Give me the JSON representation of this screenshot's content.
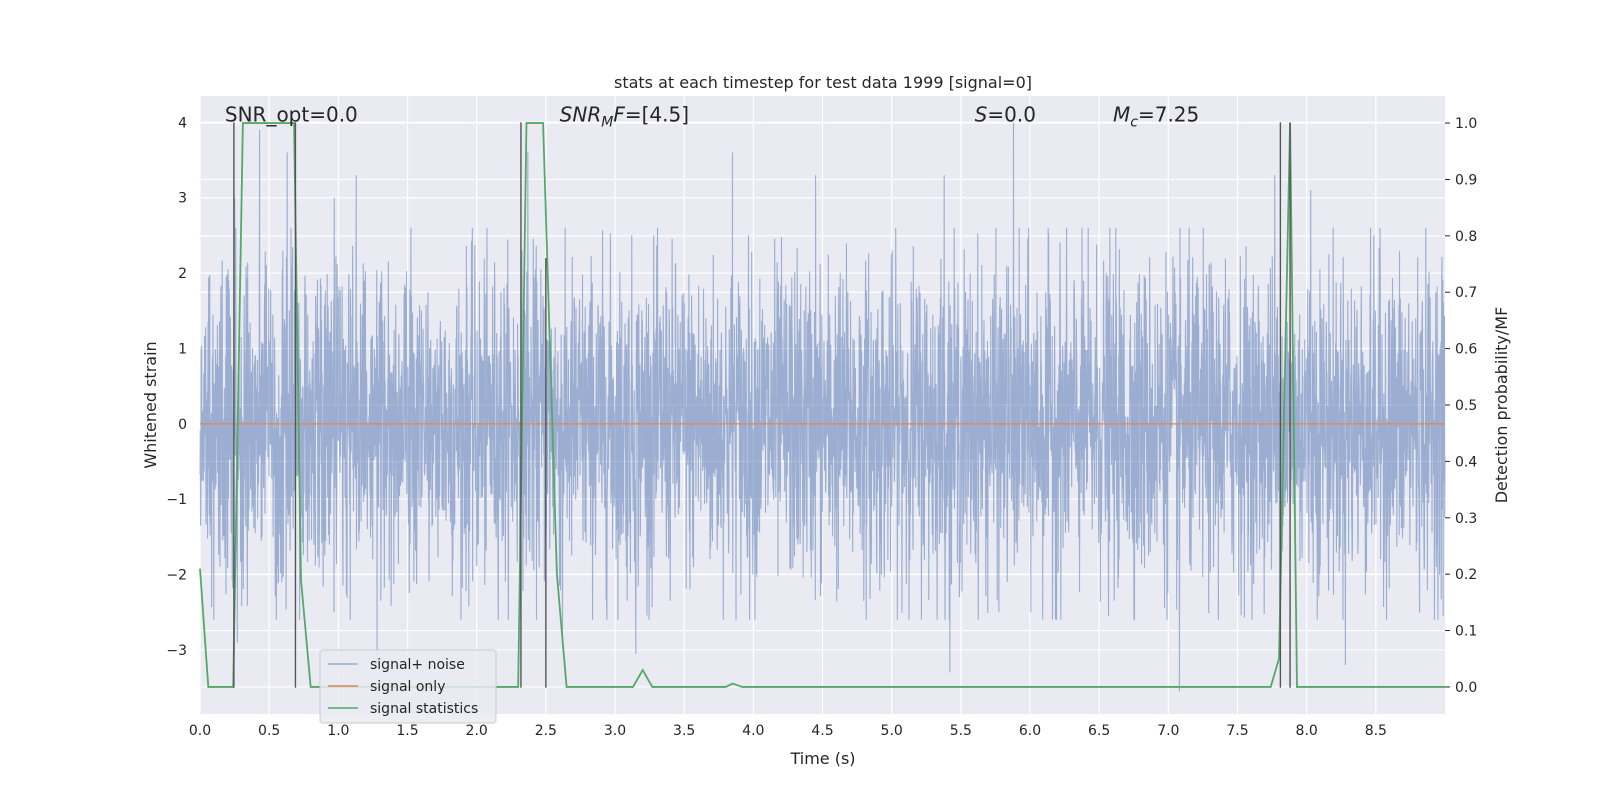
{
  "chart_data": {
    "type": "line",
    "title": "stats at each timestep for test data 1999 [signal=0]",
    "xlabel": "Time (s)",
    "ylabel": "Whitened strain",
    "ylabel_right": "Detection probability/MF",
    "xlim": [
      0.0,
      9.0
    ],
    "ylim": [
      -3.85,
      4.35
    ],
    "ylim_right": [
      -0.048,
      1.048
    ],
    "x_ticks": [
      "0.0",
      "0.5",
      "1.0",
      "1.5",
      "2.0",
      "2.5",
      "3.0",
      "3.5",
      "4.0",
      "4.5",
      "5.0",
      "5.5",
      "6.0",
      "6.5",
      "7.0",
      "7.5",
      "8.0",
      "8.5"
    ],
    "y_ticks": [
      "4",
      "3",
      "2",
      "1",
      "0",
      "−1",
      "−2",
      "−3"
    ],
    "y_ticks_right": [
      "1.0",
      "0.9",
      "0.8",
      "0.7",
      "0.6",
      "0.5",
      "0.4",
      "0.3",
      "0.2",
      "0.1",
      "0.0"
    ],
    "grid": true,
    "legend_position": "lower-left",
    "annotations": [
      {
        "text": "SNR_opt=0.0",
        "x": 0.18,
        "y": 4.0
      },
      {
        "text": "SNRₘF=[4.5]",
        "x": 2.6,
        "y": 4.0,
        "math_main": "SNR",
        "math_sub": "M",
        "math_tail": "F",
        "suffix": "=[4.5]"
      },
      {
        "text": "S=0.0",
        "x": 5.6,
        "y": 4.0,
        "math_main": "S",
        "suffix": "=0.0"
      },
      {
        "text": "Mᴄ=7.25",
        "x": 6.6,
        "y": 4.0,
        "math_main": "M",
        "math_sub": "c",
        "suffix": "=7.25"
      }
    ],
    "series": [
      {
        "name": "signal+ noise",
        "color": "#4c72b0",
        "opacity": 0.5,
        "kind": "noise",
        "n_points": 4600,
        "std": 1.05,
        "upper_extremes": [
          [
            0.25,
            3.0
          ],
          [
            0.43,
            3.9
          ],
          [
            0.63,
            3.6
          ],
          [
            0.97,
            3.0
          ],
          [
            1.13,
            3.3
          ],
          [
            2.37,
            3.6
          ],
          [
            3.85,
            3.6
          ],
          [
            4.45,
            3.3
          ],
          [
            5.38,
            3.3
          ],
          [
            5.88,
            4.0
          ],
          [
            7.77,
            3.3
          ],
          [
            8.03,
            3.1
          ]
        ],
        "lower_extremes": [
          [
            0.27,
            -2.9
          ],
          [
            1.28,
            -3.2
          ],
          [
            2.62,
            -2.95
          ],
          [
            3.15,
            -3.05
          ],
          [
            5.42,
            -3.3
          ],
          [
            7.08,
            -3.55
          ],
          [
            8.28,
            -3.2
          ]
        ]
      },
      {
        "name": "signal only",
        "color": "#dd8452",
        "x": [
          0.0,
          9.0
        ],
        "y": [
          0.0,
          0.0
        ]
      },
      {
        "name": "signal statistics",
        "color": "#55a868",
        "axis": "right",
        "x": [
          0.0,
          0.06,
          0.24,
          0.31,
          0.68,
          0.73,
          0.8,
          2.3,
          2.36,
          2.48,
          2.58,
          2.65,
          3.13,
          3.2,
          3.27,
          3.8,
          3.85,
          3.92,
          7.74,
          7.8,
          7.88,
          7.93,
          8.0,
          9.0
        ],
        "y": [
          0.21,
          0.0,
          0.0,
          1.0,
          1.0,
          0.19,
          0.0,
          0.0,
          1.0,
          1.0,
          0.2,
          0.0,
          0.0,
          0.03,
          0.0,
          0.0,
          0.006,
          0.0,
          0.0,
          0.05,
          1.0,
          0.0,
          0.0,
          0.0
        ]
      }
    ],
    "event_markers": {
      "color": "#555555",
      "x": [
        0.245,
        0.69,
        2.32,
        2.5,
        7.81,
        7.88
      ],
      "y_top": [
        4.0,
        4.0,
        4.0,
        2.2,
        4.0,
        4.0
      ],
      "y_bottom": [
        -3.5,
        -3.5,
        -3.5,
        -3.5,
        -3.5,
        -3.5
      ]
    }
  }
}
